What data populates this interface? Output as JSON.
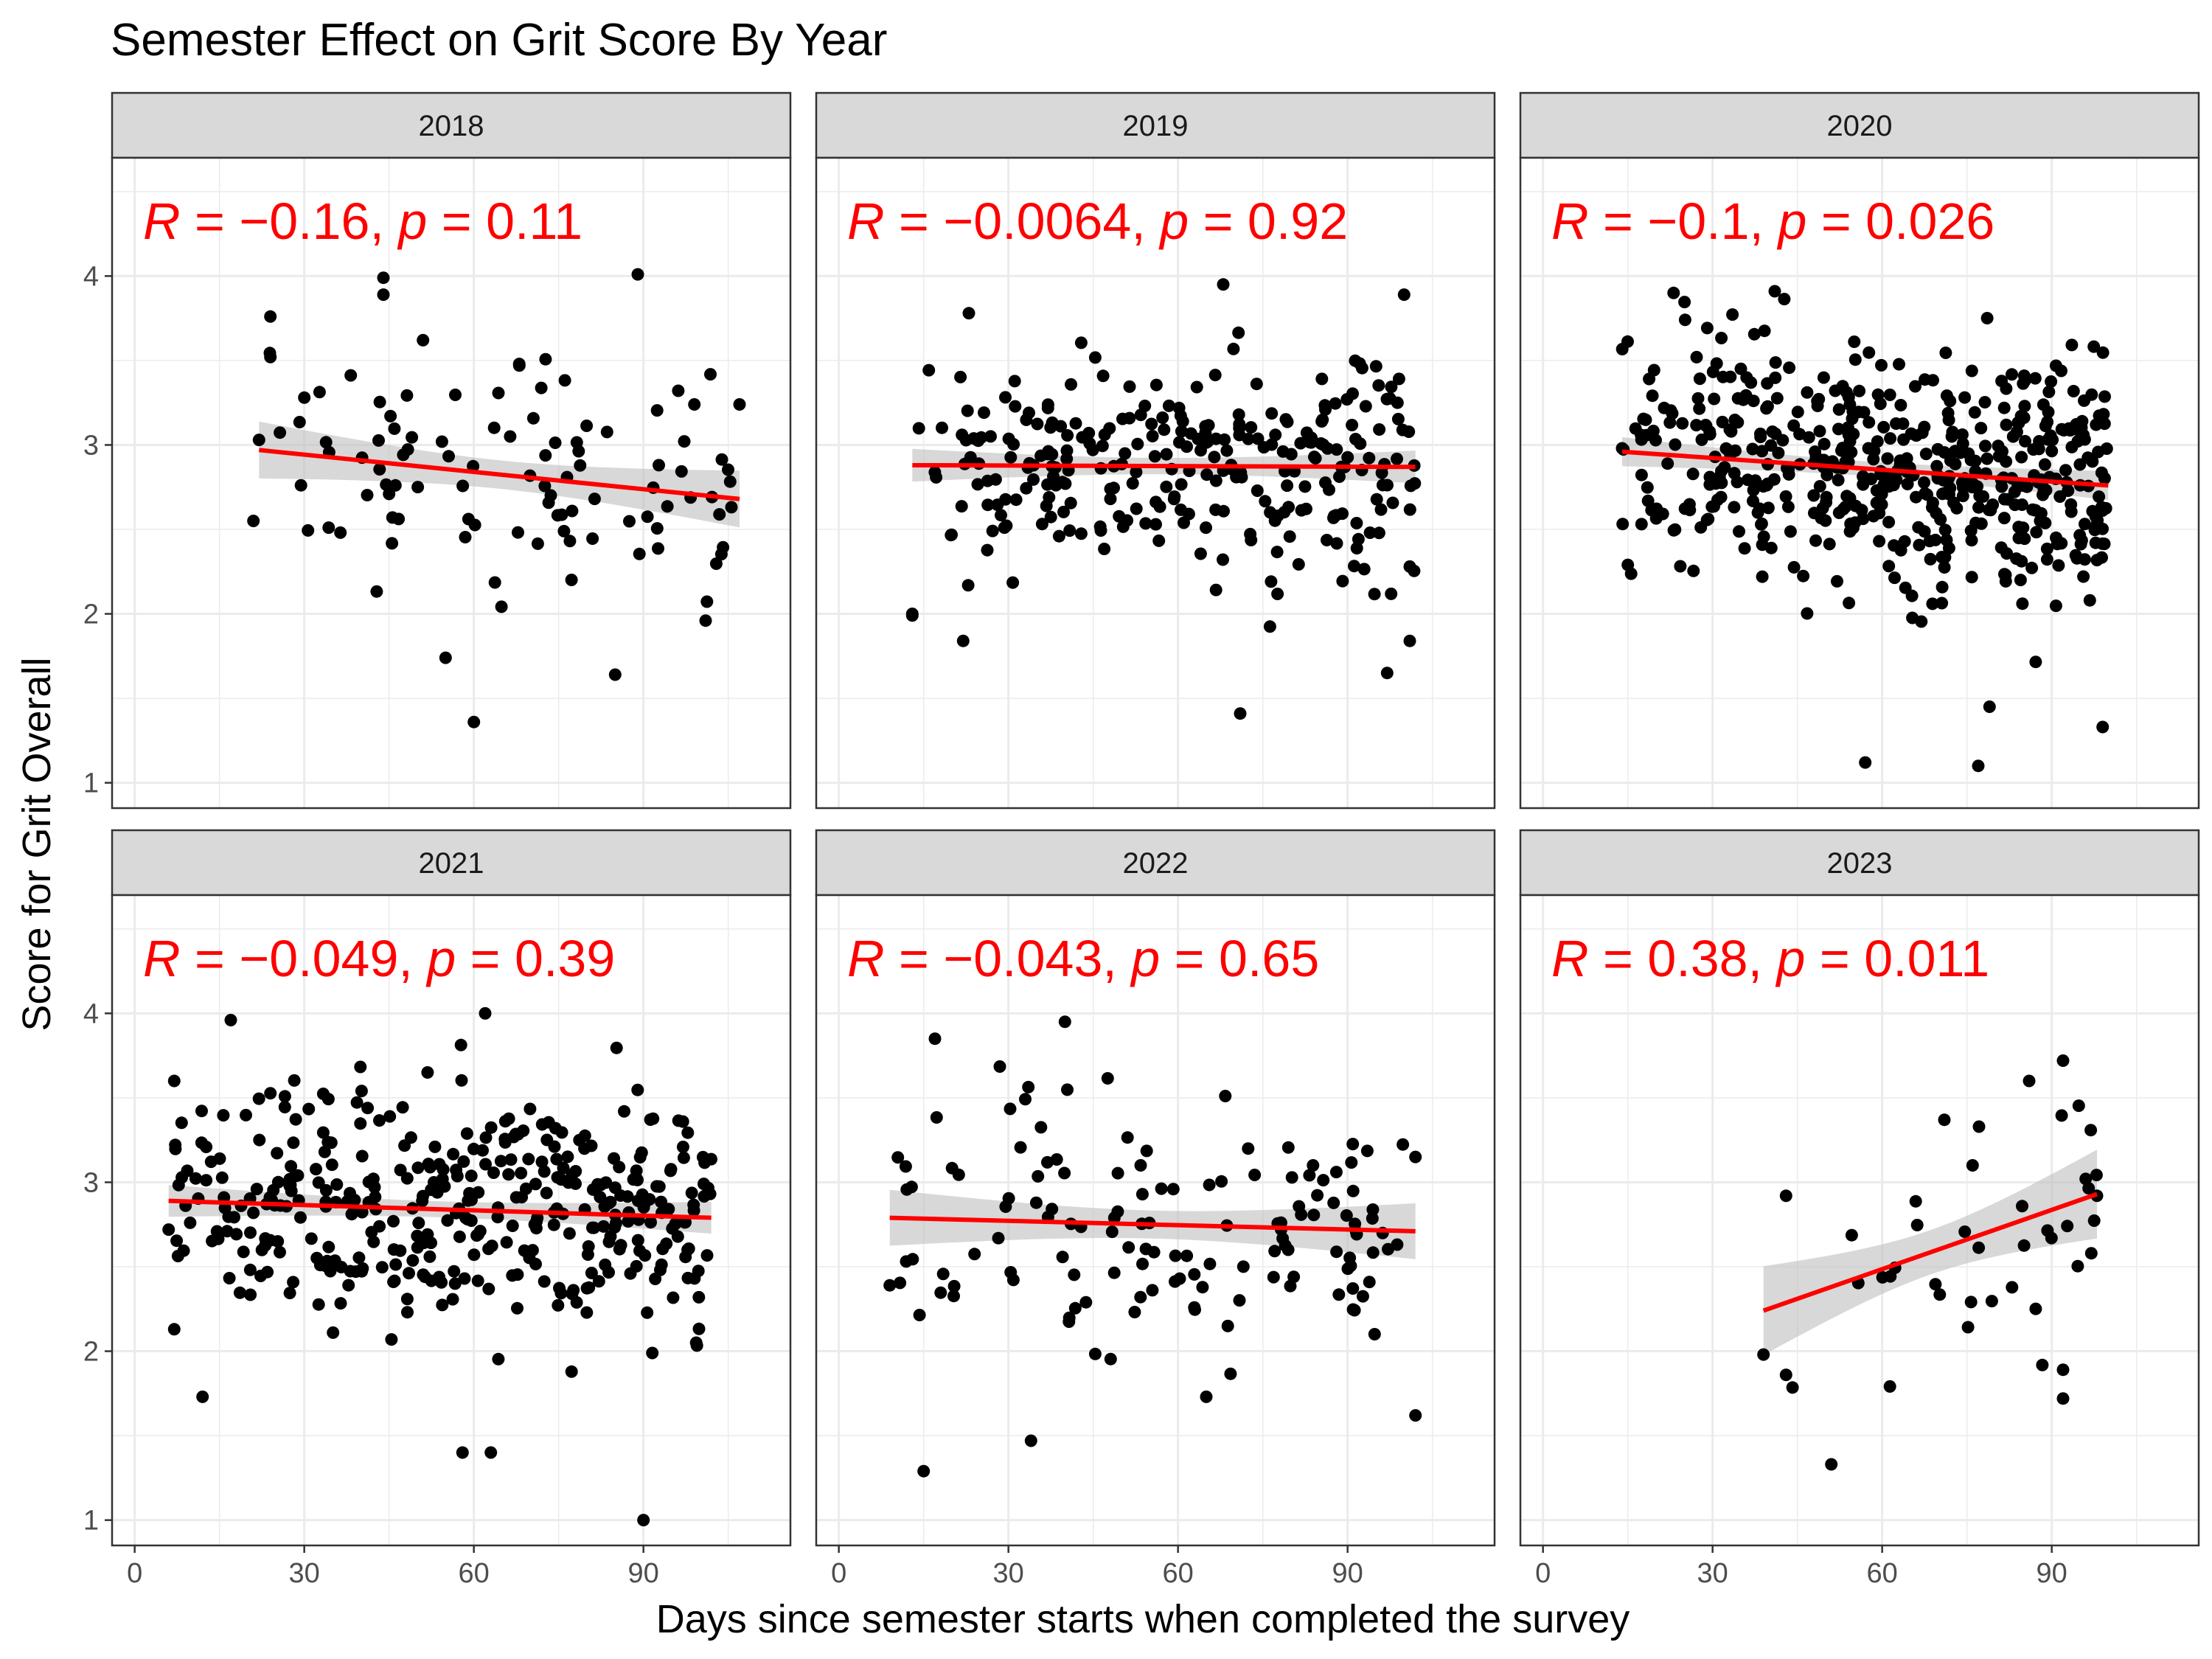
{
  "title": "Semester Effect on Grit Score By Year",
  "xlabel": "Days since semester starts when completed the survey",
  "ylabel": "Score for Grit Overall",
  "colors": {
    "points": "#000000",
    "fit_line": "#ff0000",
    "ci_band": "#bebebe",
    "strip_fill": "#d9d9d9",
    "annotation": "#ff0000",
    "grid": "#ebebeb"
  },
  "chart_data": {
    "type": "scatter",
    "facet_by": "year",
    "xlim": [
      -4,
      116
    ],
    "ylim": [
      0.85,
      4.7
    ],
    "xticks": [
      0,
      30,
      60,
      90
    ],
    "yticks": [
      1,
      2,
      3,
      4
    ],
    "grid": true,
    "panels": [
      {
        "label": "2018",
        "annotation": {
          "r_value": "−0.16",
          "p_value": "0.11"
        },
        "fit": {
          "x": [
            22,
            107
          ],
          "y": [
            2.97,
            2.68
          ]
        },
        "n_points": 110,
        "x_range": [
          21,
          107
        ],
        "y_center": 2.84,
        "y_spread": 0.45,
        "points": [
          [
            22,
            3.03
          ],
          [
            24,
            3.76
          ],
          [
            24,
            3.52
          ],
          [
            44,
            3.99
          ],
          [
            44,
            3.89
          ],
          [
            89,
            4.01
          ],
          [
            30,
            3.28
          ],
          [
            51,
            3.62
          ],
          [
            55,
            1.74
          ],
          [
            60,
            1.36
          ],
          [
            85,
            1.64
          ],
          [
            101,
            1.96
          ],
          [
            21,
            2.55
          ],
          [
            107,
            3.24
          ],
          [
            99,
            3.24
          ],
          [
            45,
            2.71
          ]
        ]
      },
      {
        "label": "2019",
        "annotation": {
          "r_value": "−0.0064",
          "p_value": "0.92"
        },
        "fit": {
          "x": [
            13,
            102
          ],
          "y": [
            2.88,
            2.87
          ]
        },
        "n_points": 290,
        "x_range": [
          13,
          102
        ],
        "y_center": 2.88,
        "y_spread": 0.42,
        "points": [
          [
            13,
            2.0
          ],
          [
            13,
            1.99
          ],
          [
            68,
            3.95
          ],
          [
            100,
            3.89
          ],
          [
            22,
            1.84
          ],
          [
            71,
            1.41
          ],
          [
            97,
            1.65
          ],
          [
            101,
            1.84
          ],
          [
            23,
            3.78
          ],
          [
            101,
            2.28
          ]
        ]
      },
      {
        "label": "2020",
        "annotation": {
          "r_value": "−0.1",
          "p_value": "0.026"
        },
        "fit": {
          "x": [
            14,
            100
          ],
          "y": [
            2.96,
            2.76
          ]
        },
        "n_points": 520,
        "x_range": [
          14,
          100
        ],
        "y_center": 2.82,
        "y_spread": 0.5,
        "points": [
          [
            57,
            1.12
          ],
          [
            77,
            1.1
          ],
          [
            41,
            3.91
          ],
          [
            99,
            1.33
          ],
          [
            79,
            1.45
          ],
          [
            15,
            2.29
          ],
          [
            14,
            2.98
          ]
        ]
      },
      {
        "label": "2021",
        "annotation": {
          "r_value": "−0.049",
          "p_value": "0.39"
        },
        "fit": {
          "x": [
            6,
            102
          ],
          "y": [
            2.89,
            2.79
          ]
        },
        "n_points": 400,
        "x_range": [
          6,
          102
        ],
        "y_center": 2.82,
        "y_spread": 0.48,
        "points": [
          [
            90,
            1.0
          ],
          [
            62,
            4.0
          ],
          [
            17,
            3.96
          ],
          [
            12,
            1.73
          ],
          [
            58,
            1.4
          ],
          [
            63,
            1.4
          ],
          [
            6,
            2.72
          ],
          [
            7,
            3.6
          ],
          [
            7,
            2.13
          ]
        ]
      },
      {
        "label": "2022",
        "annotation": {
          "r_value": "−0.043",
          "p_value": "0.65"
        },
        "fit": {
          "x": [
            9,
            102
          ],
          "y": [
            2.79,
            2.71
          ]
        },
        "n_points": 140,
        "x_range": [
          9,
          102
        ],
        "y_center": 2.75,
        "y_spread": 0.5,
        "points": [
          [
            15,
            1.29
          ],
          [
            34,
            1.47
          ],
          [
            40,
            3.95
          ],
          [
            17,
            3.85
          ],
          [
            102,
            1.62
          ],
          [
            65,
            1.73
          ],
          [
            9,
            2.39
          ],
          [
            102,
            3.15
          ]
        ]
      },
      {
        "label": "2023",
        "annotation": {
          "r_value": "0.38",
          "p_value": "0.011"
        },
        "fit": {
          "x": [
            39,
            98
          ],
          "y": [
            2.24,
            2.93
          ]
        },
        "n_points": 45,
        "x_range": [
          39,
          98
        ],
        "y_center": 2.65,
        "y_spread": 0.45,
        "points": [
          [
            51,
            1.33
          ],
          [
            92,
            3.72
          ],
          [
            92,
            1.72
          ],
          [
            92,
            1.89
          ],
          [
            39,
            1.98
          ],
          [
            43,
            1.86
          ],
          [
            43,
            2.92
          ],
          [
            71,
            3.37
          ],
          [
            86,
            3.6
          ],
          [
            96,
            3.02
          ],
          [
            98,
            2.92
          ],
          [
            97,
            2.58
          ]
        ]
      }
    ]
  }
}
